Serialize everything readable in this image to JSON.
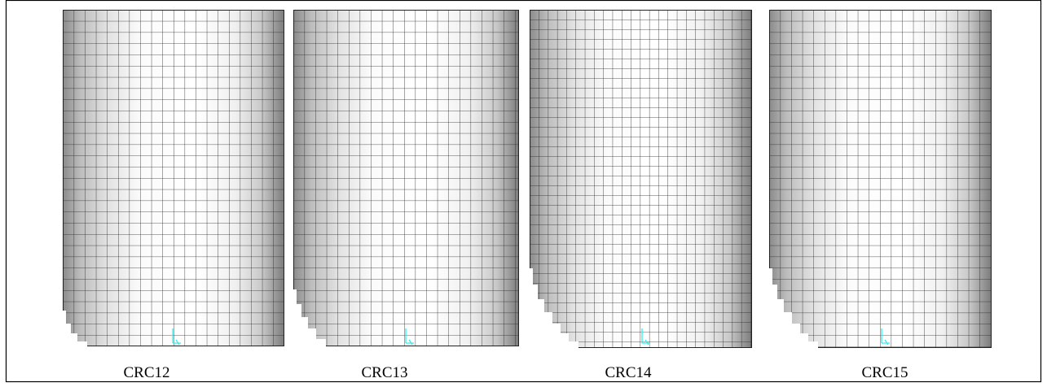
{
  "panels": [
    {
      "label": "CRC12"
    },
    {
      "label": "CRC13"
    },
    {
      "label": "CRC14"
    },
    {
      "label": "CRC15"
    }
  ]
}
